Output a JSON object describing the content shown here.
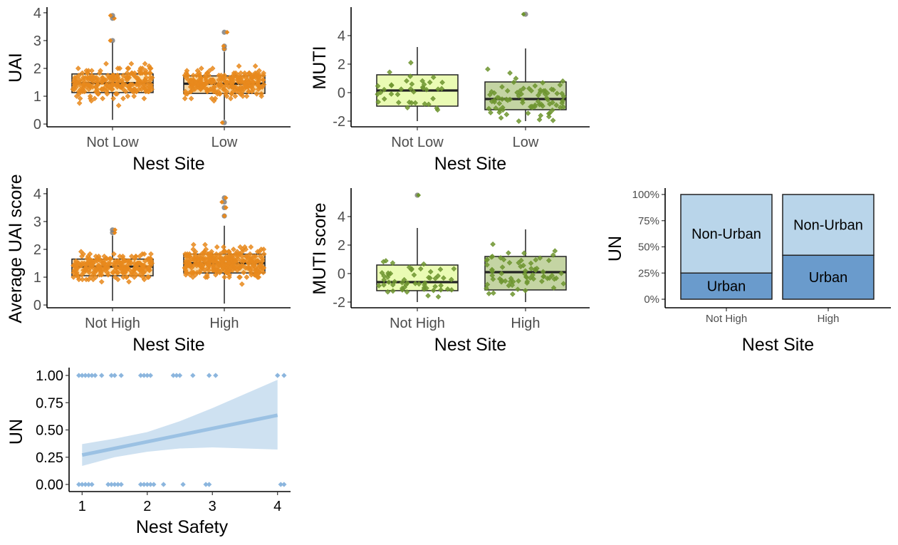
{
  "chart_data": [
    {
      "id": "uai_low",
      "type": "box",
      "xlabel": "Nest Site",
      "ylabel": "UAI",
      "yticks": [
        "0",
        "1",
        "2",
        "3",
        "4"
      ],
      "ylim": [
        -0.1,
        4.1
      ],
      "categories": [
        "Not Low",
        "Low"
      ],
      "fill_colors": [
        "#fde9c4",
        "#f8d8a6"
      ],
      "point_color": "#e8891d",
      "boxes": [
        {
          "q1": 1.13,
          "median": 1.47,
          "q3": 1.8,
          "lower": 0.15,
          "upper": 2.95,
          "outliers": [
            3.0,
            3.8,
            3.9
          ]
        },
        {
          "q1": 1.1,
          "median": 1.45,
          "q3": 1.73,
          "lower": 0.15,
          "upper": 2.6,
          "outliers": [
            0.05,
            2.7,
            2.8,
            3.3
          ]
        }
      ]
    },
    {
      "id": "muti_low",
      "type": "box",
      "xlabel": "Nest Site",
      "ylabel": "MUTI",
      "yticks": [
        "-2",
        "0",
        "2",
        "4"
      ],
      "ylim": [
        -2.4,
        5.8
      ],
      "categories": [
        "Not Low",
        "Low"
      ],
      "fill_colors": [
        "#eafbb4",
        "#c4d4a3"
      ],
      "point_color": "#6e9530",
      "boxes": [
        {
          "q1": -0.95,
          "median": 0.15,
          "q3": 1.25,
          "lower": -2.0,
          "upper": 3.2,
          "outliers": []
        },
        {
          "q1": -1.2,
          "median": -0.45,
          "q3": 0.75,
          "lower": -2.0,
          "upper": 3.1,
          "outliers": [
            5.5
          ]
        }
      ]
    },
    {
      "id": "uai_high",
      "type": "box",
      "xlabel": "Nest Site",
      "ylabel": "Average UAI score",
      "yticks": [
        "0",
        "1",
        "2",
        "3",
        "4"
      ],
      "ylim": [
        -0.1,
        4.1
      ],
      "categories": [
        "Not High",
        "High"
      ],
      "fill_colors": [
        "#fde3b8",
        "#f8d8a6"
      ],
      "point_color": "#e8891d",
      "boxes": [
        {
          "q1": 1.05,
          "median": 1.38,
          "q3": 1.65,
          "lower": 0.15,
          "upper": 2.5,
          "outliers": [
            2.6,
            2.7
          ]
        },
        {
          "q1": 1.15,
          "median": 1.5,
          "q3": 1.83,
          "lower": 0.05,
          "upper": 2.85,
          "outliers": [
            3.2,
            3.5,
            3.7,
            3.85
          ]
        }
      ]
    },
    {
      "id": "muti_high",
      "type": "box",
      "xlabel": "Nest Site",
      "ylabel": "MUTI score",
      "yticks": [
        "-2",
        "0",
        "2",
        "4"
      ],
      "ylim": [
        -2.4,
        5.8
      ],
      "categories": [
        "Not High",
        "High"
      ],
      "fill_colors": [
        "#eafbb4",
        "#c4d4a3"
      ],
      "point_color": "#6e9530",
      "boxes": [
        {
          "q1": -1.2,
          "median": -0.6,
          "q3": 0.6,
          "lower": -2.0,
          "upper": 3.2,
          "outliers": [
            5.5
          ]
        },
        {
          "q1": -1.15,
          "median": 0.1,
          "q3": 1.2,
          "lower": -2.0,
          "upper": 3.1,
          "outliers": []
        }
      ]
    },
    {
      "id": "un_stacked",
      "type": "stacked_bar",
      "xlabel": "Nest Site",
      "ylabel": "UN",
      "yticks": [
        "0%",
        "25%",
        "50%",
        "75%",
        "100%"
      ],
      "categories": [
        "Not High",
        "High"
      ],
      "series": [
        {
          "name": "Urban",
          "color": "#6a9bcc",
          "values": [
            0.25,
            0.42
          ]
        },
        {
          "name": "Non-Urban",
          "color": "#b9d5ea",
          "values": [
            0.75,
            0.58
          ]
        }
      ]
    },
    {
      "id": "un_safety",
      "type": "scatter",
      "xlabel": "Nest Safety",
      "ylabel": "UN",
      "xticks": [
        "1",
        "2",
        "3",
        "4"
      ],
      "yticks": [
        "0.00",
        "0.25",
        "0.50",
        "0.75",
        "1.00"
      ],
      "xlim": [
        0.8,
        4.2
      ],
      "ylim": [
        -0.02,
        1.02
      ],
      "point_color": "#8cb6de",
      "points_at_one": [
        0.95,
        1.0,
        1.05,
        1.1,
        1.15,
        1.2,
        1.3,
        1.45,
        1.5,
        1.6,
        1.9,
        1.95,
        2.0,
        2.05,
        2.4,
        2.45,
        2.5,
        2.7,
        2.95,
        3.05,
        4.0,
        4.1
      ],
      "points_at_zero": [
        0.95,
        1.0,
        1.05,
        1.1,
        1.15,
        1.4,
        1.45,
        1.5,
        1.55,
        1.6,
        1.9,
        1.95,
        2.0,
        2.05,
        2.1,
        2.25,
        2.55,
        2.9,
        2.95,
        4.05,
        4.1
      ],
      "fit": {
        "x": [
          1,
          4
        ],
        "y": [
          0.27,
          0.635
        ],
        "color": "#9bc1e3"
      },
      "ci_band": {
        "x": [
          1,
          1.5,
          2,
          2.5,
          3,
          3.5,
          4
        ],
        "lower": [
          0.17,
          0.25,
          0.3,
          0.33,
          0.34,
          0.33,
          0.32
        ],
        "upper": [
          0.37,
          0.42,
          0.48,
          0.58,
          0.7,
          0.83,
          0.96
        ],
        "color": "#c6dcee"
      }
    }
  ]
}
